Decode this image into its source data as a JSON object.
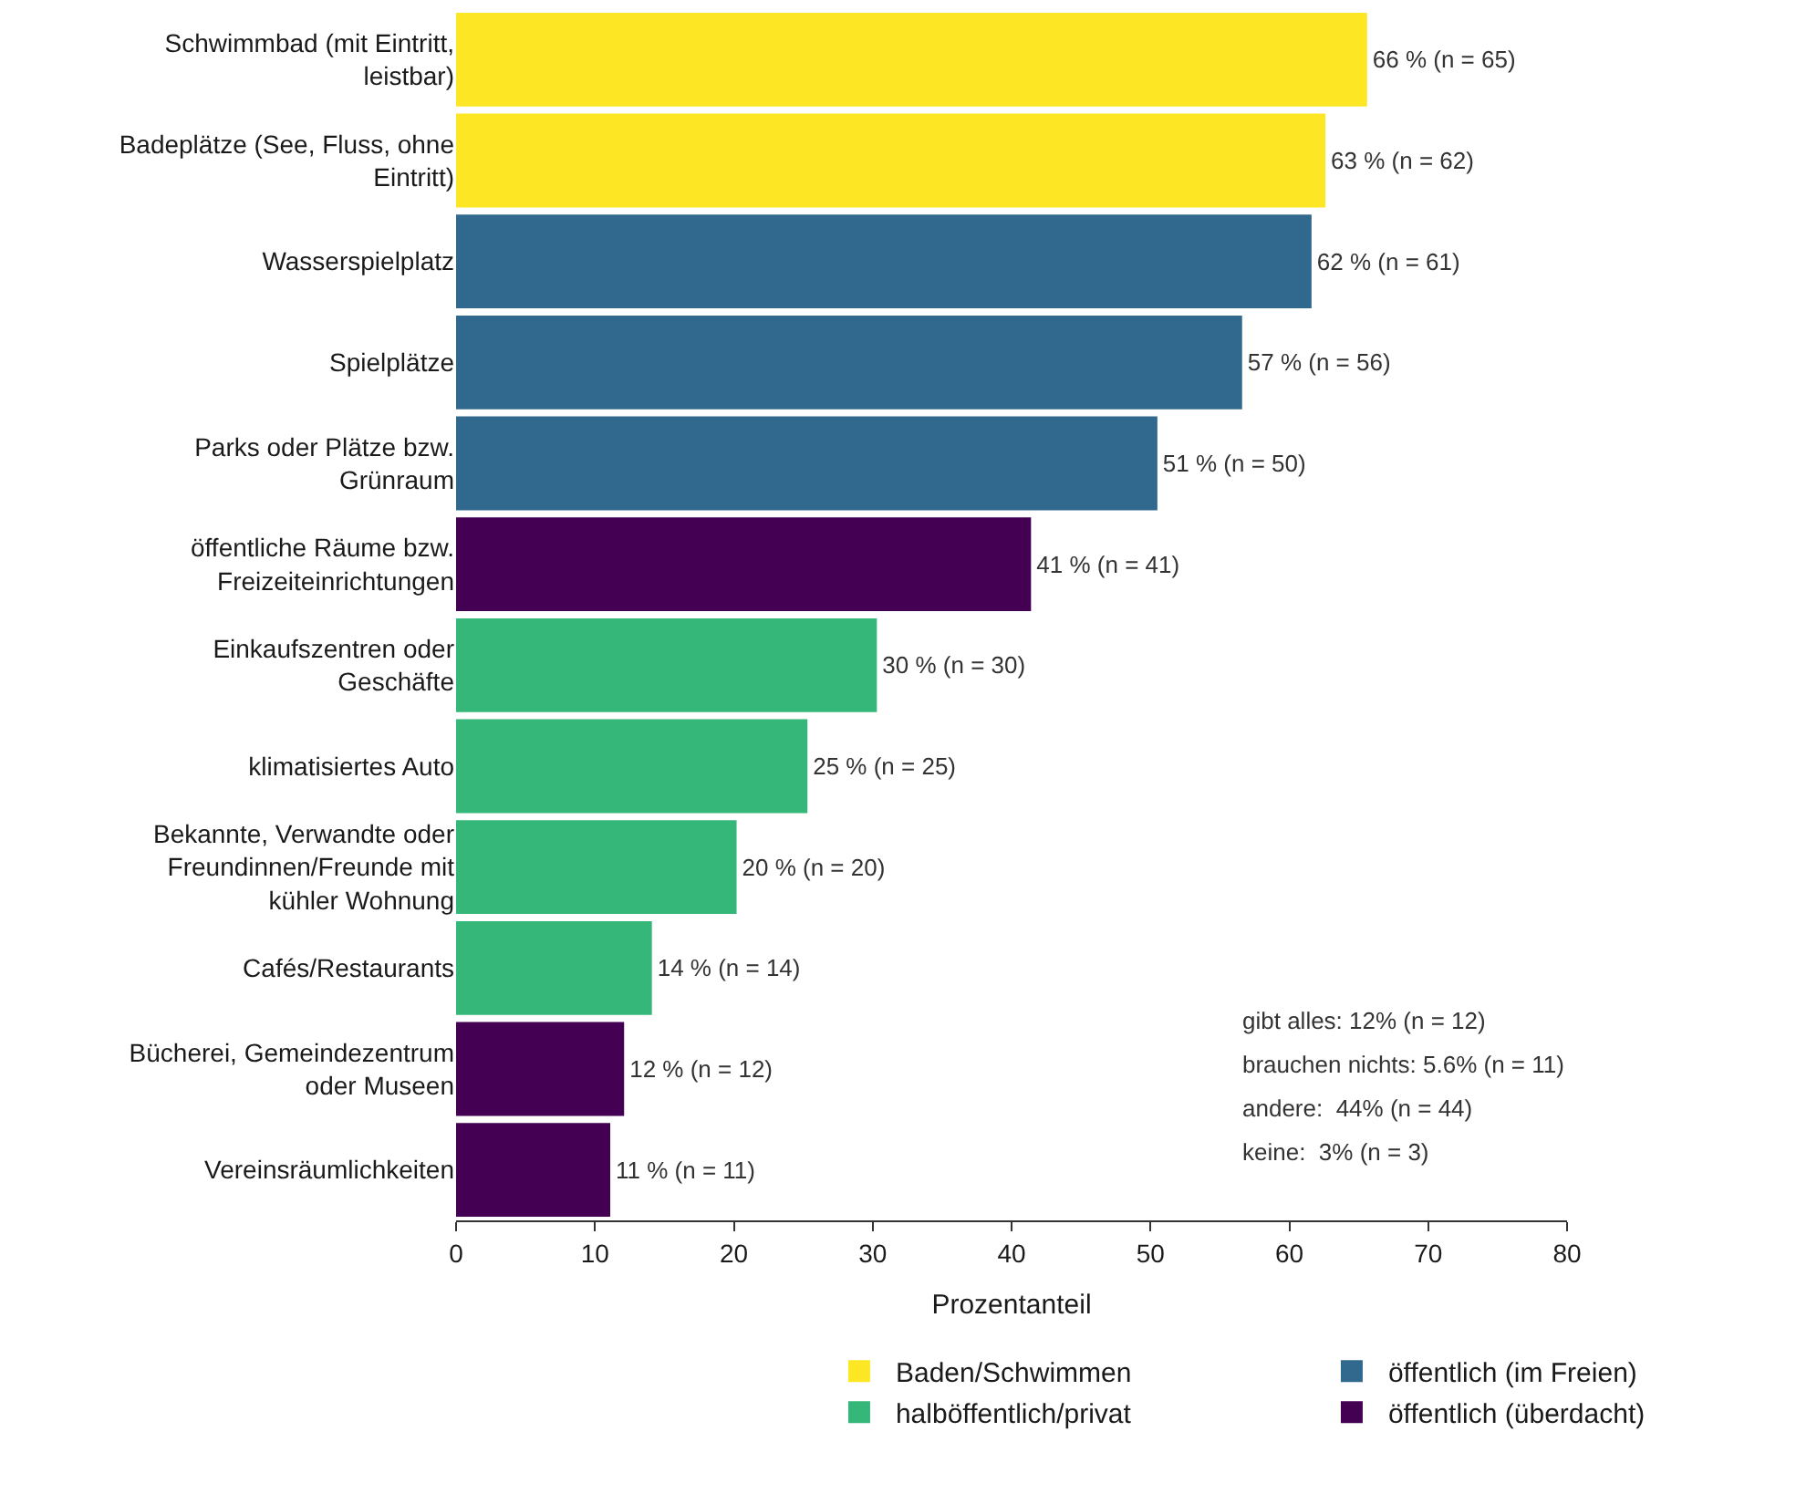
{
  "chart_data": {
    "type": "bar",
    "orientation": "horizontal",
    "xlabel": "Prozentanteil",
    "xlim": [
      0,
      80
    ],
    "xticks": [
      0,
      10,
      20,
      30,
      40,
      50,
      60,
      70,
      80
    ],
    "grid": false,
    "legend": "bottom",
    "categories": [
      "Schwimmbad (mit Eintritt,\nleistbar)",
      "Badeplätze (See, Fluss, ohne\nEintritt)",
      "Wasserspielplatz",
      "Spielplätze",
      "Parks oder Plätze bzw.\nGrünraum",
      "öffentliche Räume bzw.\nFreizeiteinrichtungen",
      "Einkaufszentren oder\nGeschäfte",
      "klimatisiertes Auto",
      "Bekannte, Verwandte oder\nFreundinnen/Freunde mit\nkühler Wohnung",
      "Cafés/Restaurants",
      "Bücherei, Gemeindezentrum\noder Museen",
      "Vereinsräumlichkeiten"
    ],
    "series": [
      {
        "name": "Baden/Schwimmen",
        "color": "#fde725",
        "values": [
          65.6,
          62.6,
          null,
          null,
          null,
          null,
          null,
          null,
          null,
          null,
          null,
          null
        ],
        "value_labels": [
          "66 % (n = 65)",
          "63 % (n = 62)",
          null,
          null,
          null,
          null,
          null,
          null,
          null,
          null,
          null,
          null
        ]
      },
      {
        "name": "öffentlich (im Freien)",
        "color": "#31688e",
        "values": [
          null,
          null,
          61.6,
          56.6,
          50.5,
          null,
          null,
          null,
          null,
          null,
          null,
          null
        ],
        "value_labels": [
          null,
          null,
          "62 % (n = 61)",
          "57 % (n = 56)",
          "51 % (n = 50)",
          null,
          null,
          null,
          null,
          null,
          null,
          null
        ]
      },
      {
        "name": "halböffentlich/privat",
        "color": "#35b779",
        "values": [
          null,
          null,
          null,
          null,
          null,
          null,
          30.3,
          25.3,
          20.2,
          14.1,
          null,
          null
        ],
        "value_labels": [
          null,
          null,
          null,
          null,
          null,
          null,
          "30 % (n = 30)",
          "25 % (n = 25)",
          "20 % (n = 20)",
          "14 % (n = 14)",
          null,
          null
        ]
      },
      {
        "name": "öffentlich (überdacht)",
        "color": "#440154",
        "values": [
          null,
          null,
          null,
          null,
          null,
          41.4,
          null,
          null,
          null,
          null,
          12.1,
          11.1
        ],
        "value_labels": [
          null,
          null,
          null,
          null,
          null,
          "41 % (n = 41)",
          null,
          null,
          null,
          null,
          "12 % (n = 12)",
          "11 % (n = 11)"
        ]
      }
    ],
    "annotations": [
      "gibt alles: 12% (n = 12)",
      "brauchen nichts: 5.6% (n = 11)",
      "andere:  44% (n = 44)",
      "keine:  3% (n = 3)"
    ]
  }
}
